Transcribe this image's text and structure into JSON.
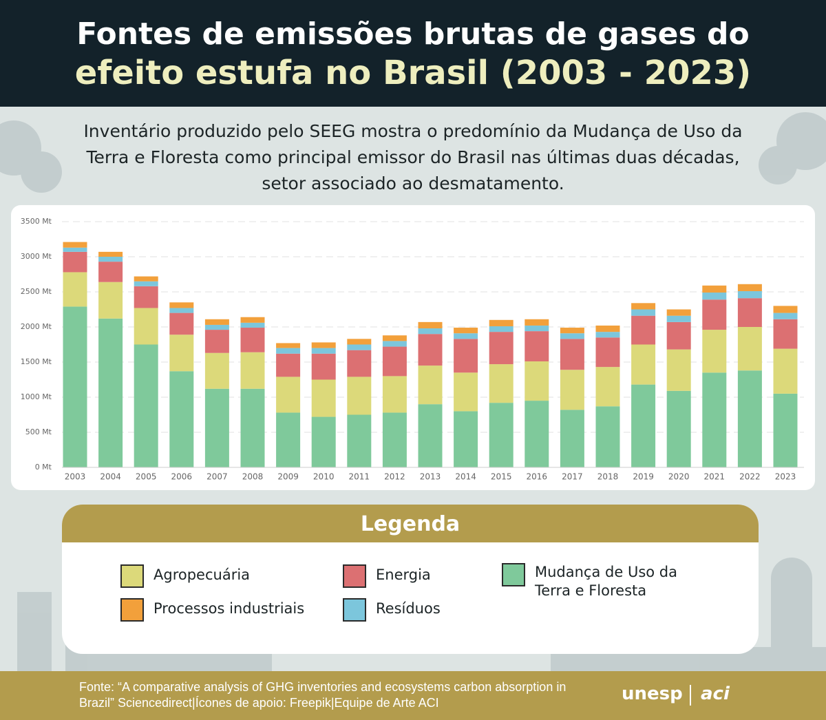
{
  "header": {
    "title_lines": [
      "Fontes de emissões brutas de gases do",
      "efeito estufa no Brasil (2003 - 2023)"
    ],
    "subtitle": "Inventário produzido pelo SEEG mostra o predomínio da Mudança de Uso da Terra e Floresta como principal emissor do Brasil nas últimas duas décadas, setor associado ao desmatamento."
  },
  "chart_data": {
    "type": "stacked_bar",
    "categories": [
      "2003",
      "2004",
      "2005",
      "2006",
      "2007",
      "2008",
      "2009",
      "2010",
      "2011",
      "2012",
      "2013",
      "2014",
      "2015",
      "2016",
      "2017",
      "2018",
      "2019",
      "2020",
      "2021",
      "2022",
      "2023"
    ],
    "series": [
      {
        "name": "Mudança de Uso da Terra e Floresta",
        "color": "#7fc99b",
        "values": [
          2290,
          2120,
          1750,
          1370,
          1120,
          1120,
          780,
          720,
          750,
          780,
          900,
          800,
          920,
          950,
          820,
          870,
          1180,
          1090,
          1350,
          1380,
          1050
        ]
      },
      {
        "name": "Agropecuária",
        "color": "#dcd97a",
        "values": [
          490,
          520,
          520,
          520,
          510,
          520,
          510,
          530,
          540,
          520,
          550,
          550,
          550,
          560,
          570,
          560,
          570,
          590,
          610,
          620,
          640
        ]
      },
      {
        "name": "Energia",
        "color": "#dc7072",
        "values": [
          290,
          290,
          310,
          310,
          330,
          350,
          330,
          370,
          380,
          420,
          450,
          480,
          460,
          430,
          440,
          420,
          410,
          390,
          430,
          410,
          420
        ]
      },
      {
        "name": "Resíduos",
        "color": "#7cc6dc",
        "values": [
          60,
          70,
          70,
          70,
          70,
          70,
          80,
          80,
          80,
          80,
          80,
          80,
          80,
          80,
          80,
          80,
          90,
          90,
          100,
          100,
          90
        ]
      },
      {
        "name": "Processos industriais",
        "color": "#f2a03b",
        "values": [
          80,
          70,
          70,
          80,
          80,
          80,
          70,
          80,
          80,
          80,
          90,
          80,
          90,
          90,
          80,
          90,
          90,
          90,
          100,
          100,
          100
        ]
      }
    ],
    "ylim": [
      0,
      3500
    ],
    "yticks": [
      {
        "value": 0,
        "label": "0 Mt"
      },
      {
        "value": 500,
        "label": "500 Mt"
      },
      {
        "value": 1000,
        "label": "1000 Mt"
      },
      {
        "value": 1500,
        "label": "1500 Mt"
      },
      {
        "value": 2000,
        "label": "2000 Mt"
      },
      {
        "value": 2500,
        "label": "2500 Mt"
      },
      {
        "value": 3000,
        "label": "3000 Mt"
      },
      {
        "value": 3500,
        "label": "3500 Mt"
      }
    ],
    "grid": true,
    "legend_title": "Legenda"
  },
  "footer": {
    "source": "Fonte: “A comparative analysis of GHG inventories and ecosystems carbon absorption in Brazil” Sciencedirect|Ícones de apoio: Freepik|Equipe de Arte ACI",
    "logos": [
      "unesp",
      "aci"
    ]
  }
}
